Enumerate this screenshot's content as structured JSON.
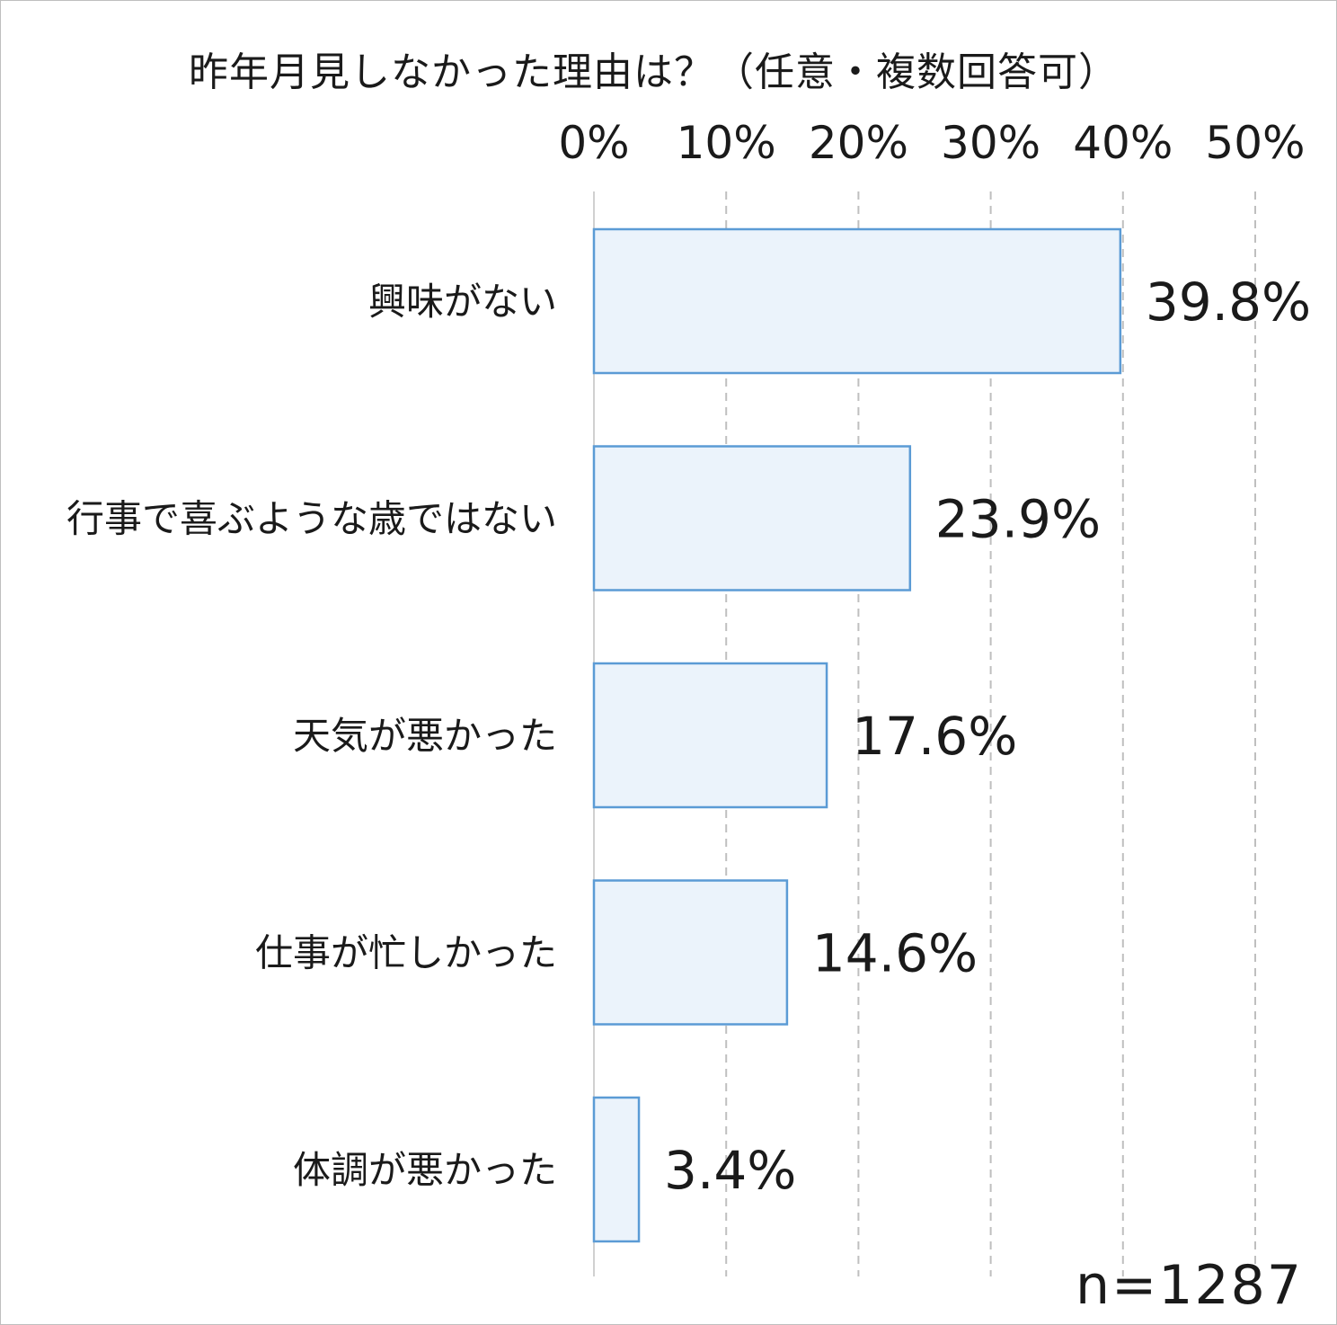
{
  "chart_data": {
    "type": "bar",
    "orientation": "horizontal",
    "title": "昨年月見しなかった理由は？（任意・複数回答可）",
    "categories": [
      "興味がない",
      "行事で喜ぶような歳ではない",
      "天気が悪かった",
      "仕事が忙しかった",
      "体調が悪かった"
    ],
    "values": [
      39.8,
      23.9,
      17.6,
      14.6,
      3.4
    ],
    "value_labels": [
      "39.8%",
      "23.9%",
      "17.6%",
      "14.6%",
      "3.4%"
    ],
    "x_ticks": [
      "0%",
      "10%",
      "20%",
      "30%",
      "40%",
      "50%"
    ],
    "xlim": [
      0,
      50
    ],
    "x_axis_position": "top",
    "grid": "dashed vertical",
    "note": "n=1287",
    "colors": {
      "bar_fill": "#ebf3fb",
      "bar_stroke": "#5b9bd5",
      "grid": "#bfbfbf",
      "axis": "#d0d0d0"
    }
  }
}
